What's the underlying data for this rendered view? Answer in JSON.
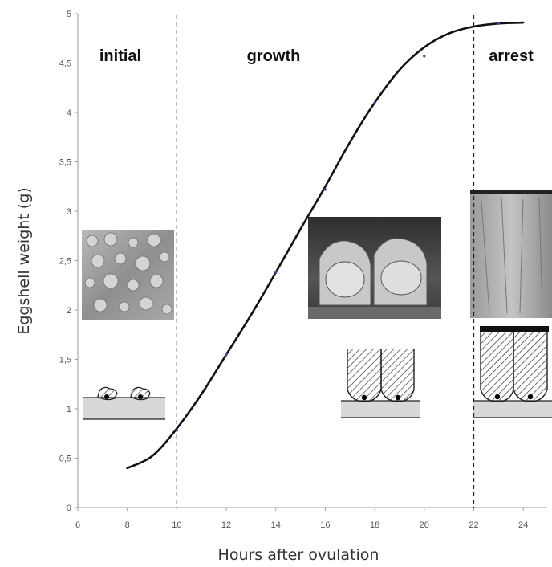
{
  "chart_data": {
    "type": "line",
    "title": "",
    "xlabel": "Hours after ovulation",
    "ylabel": "Eggshell weight (g)",
    "xlim": [
      6,
      25
    ],
    "ylim": [
      0,
      5
    ],
    "x_ticks": [
      "6",
      "8",
      "10",
      "12",
      "14",
      "16",
      "18",
      "20",
      "22",
      "24"
    ],
    "y_ticks": [
      "0",
      "0,5",
      "1",
      "1,5",
      "2",
      "2,5",
      "3",
      "3,5",
      "4",
      "4,5",
      "5"
    ],
    "grid": false,
    "phase_boundaries": [
      10,
      22
    ],
    "phases": [
      {
        "label": "initial",
        "from": 6,
        "to": 10
      },
      {
        "label": "growth",
        "from": 10,
        "to": 22
      },
      {
        "label": "arrest",
        "from": 22,
        "to": 25
      }
    ],
    "series": [
      {
        "name": "",
        "color": "#111111",
        "x": [
          8,
          9,
          10,
          11,
          12,
          13,
          14,
          15,
          16,
          17,
          18,
          19,
          20,
          21,
          22,
          23,
          24
        ],
        "y": [
          0.4,
          0.52,
          0.8,
          1.15,
          1.55,
          1.95,
          2.38,
          2.82,
          3.25,
          3.7,
          4.1,
          4.43,
          4.66,
          4.8,
          4.87,
          4.9,
          4.91
        ]
      }
    ],
    "points": {
      "x": [
        10,
        12,
        14,
        16,
        18,
        20,
        23
      ],
      "y": [
        0.78,
        1.55,
        2.38,
        3.22,
        4.1,
        4.57,
        4.9
      ]
    },
    "images": [
      {
        "phase": "initial",
        "name": "sem-initial-nucleation"
      },
      {
        "phase": "growth",
        "name": "sem-growth-columns"
      },
      {
        "phase": "arrest",
        "name": "sem-arrest-cuticle"
      }
    ]
  }
}
